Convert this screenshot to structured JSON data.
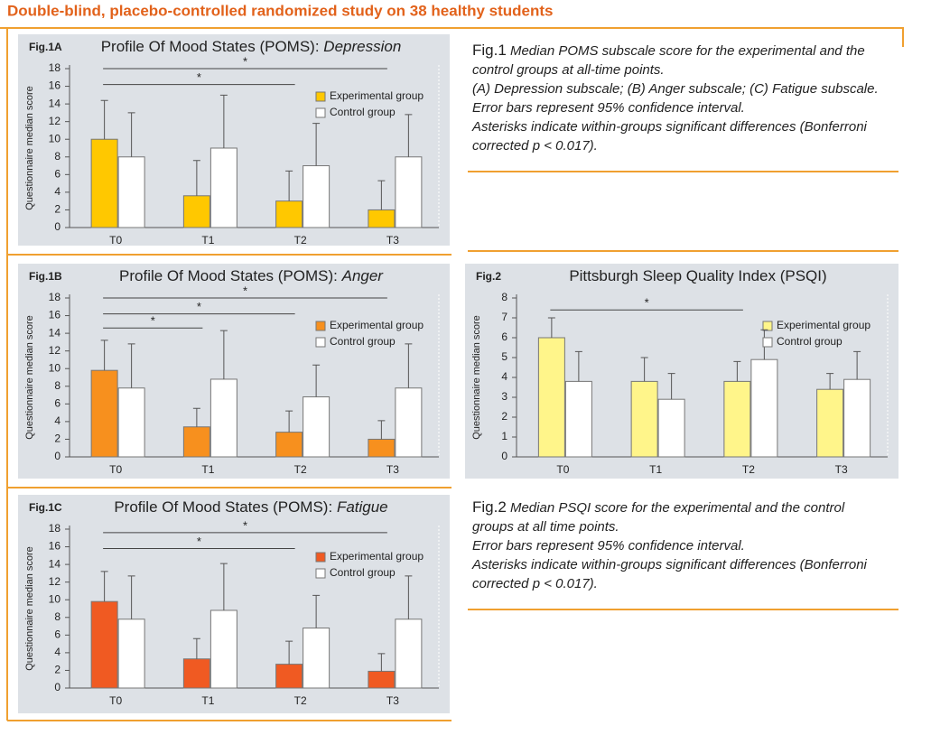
{
  "title": "Double-blind, placebo-controlled randomized study on 38 healthy students",
  "chart_data": [
    {
      "type": "bar",
      "label": "Fig.1A",
      "title": "Profile Of Mood States (POMS):",
      "title_emphasis": "Depression",
      "y_label": "Questionnaire median score",
      "categories": [
        "T0",
        "T1",
        "T2",
        "T3"
      ],
      "series": [
        {
          "name": "Experimental group",
          "color": "#ffc800",
          "values": [
            10,
            3.6,
            3,
            2
          ],
          "errors": [
            4.4,
            4,
            3.4,
            3.3
          ]
        },
        {
          "name": "Control group",
          "color": "#ffffff",
          "values": [
            8,
            9,
            7,
            8
          ],
          "errors": [
            5,
            6,
            4.8,
            4.8
          ]
        }
      ],
      "ylim": [
        0,
        18
      ],
      "yticks": [
        0,
        2,
        4,
        6,
        8,
        10,
        12,
        14,
        16,
        18
      ],
      "significance": [
        {
          "label": "*",
          "start": "T0",
          "end": "T3",
          "y": 18
        },
        {
          "label": "*",
          "start": "T0",
          "end": "T2",
          "y": 16.2
        }
      ]
    },
    {
      "type": "bar",
      "label": "Fig.1B",
      "title": "Profile Of Mood States (POMS):",
      "title_emphasis": "Anger",
      "y_label": "Questionnaire median score",
      "categories": [
        "T0",
        "T1",
        "T2",
        "T3"
      ],
      "series": [
        {
          "name": "Experimental group",
          "color": "#f7901e",
          "values": [
            9.8,
            3.4,
            2.8,
            2
          ],
          "errors": [
            3.4,
            2.1,
            2.4,
            2.1
          ]
        },
        {
          "name": "Control group",
          "color": "#ffffff",
          "values": [
            7.8,
            8.8,
            6.8,
            7.8
          ],
          "errors": [
            5,
            5.5,
            3.6,
            5
          ]
        }
      ],
      "ylim": [
        0,
        18
      ],
      "yticks": [
        0,
        2,
        4,
        6,
        8,
        10,
        12,
        14,
        16,
        18
      ],
      "significance": [
        {
          "label": "*",
          "start": "T0",
          "end": "T3",
          "y": 18
        },
        {
          "label": "*",
          "start": "T0",
          "end": "T2",
          "y": 16.2
        },
        {
          "label": "*",
          "start": "T0",
          "end": "T1",
          "y": 14.6
        }
      ]
    },
    {
      "type": "bar",
      "label": "Fig.1C",
      "title": "Profile Of Mood States (POMS):",
      "title_emphasis": "Fatigue",
      "y_label": "Questionnaire median score",
      "categories": [
        "T0",
        "T1",
        "T2",
        "T3"
      ],
      "series": [
        {
          "name": "Experimental group",
          "color": "#f05a22",
          "values": [
            9.8,
            3.3,
            2.7,
            1.9
          ],
          "errors": [
            3.4,
            2.3,
            2.6,
            2
          ]
        },
        {
          "name": "Control group",
          "color": "#ffffff",
          "values": [
            7.8,
            8.8,
            6.8,
            7.8
          ],
          "errors": [
            4.9,
            5.3,
            3.7,
            4.9
          ]
        }
      ],
      "ylim": [
        0,
        18
      ],
      "yticks": [
        0,
        2,
        4,
        6,
        8,
        10,
        12,
        14,
        16,
        18
      ],
      "significance": [
        {
          "label": "*",
          "start": "T0",
          "end": "T3",
          "y": 17.6
        },
        {
          "label": "*",
          "start": "T0",
          "end": "T2",
          "y": 15.8
        }
      ]
    },
    {
      "type": "bar",
      "label": "Fig.2",
      "title": "Pittsburgh Sleep Quality Index (PSQI)",
      "y_label": "Questionnaire median score",
      "categories": [
        "T0",
        "T1",
        "T2",
        "T3"
      ],
      "series": [
        {
          "name": "Experimental group",
          "color": "#fff58a",
          "values": [
            6,
            3.8,
            3.8,
            3.4
          ],
          "errors": [
            1,
            1.2,
            1,
            0.8
          ]
        },
        {
          "name": "Control group",
          "color": "#ffffff",
          "values": [
            3.8,
            2.9,
            4.9,
            3.9
          ],
          "errors": [
            1.5,
            1.3,
            1.5,
            1.4
          ]
        }
      ],
      "ylim": [
        0,
        8
      ],
      "yticks": [
        0,
        1,
        2,
        3,
        4,
        5,
        6,
        7,
        8
      ],
      "significance": [
        {
          "label": "*",
          "start": "T0",
          "end": "T2",
          "y": 7.4
        }
      ]
    }
  ],
  "captions": [
    {
      "label": "Fig.1",
      "lines": [
        "Median POMS subscale score for the experimental and the",
        "control groups at all-time points.",
        "(A) Depression subscale; (B) Anger subscale; (C) Fatigue subscale.",
        "Error bars represent 95% confidence interval.",
        "Asterisks indicate within-groups significant differences (Bonferroni",
        "corrected p < 0.017)."
      ]
    },
    {
      "label": "Fig.2",
      "lines": [
        "Median PSQI score for the experimental and the control",
        "groups at all time points.",
        "Error bars represent 95% confidence interval.",
        "Asterisks indicate within-groups significant differences (Bonferroni",
        "corrected p < 0.017)."
      ]
    }
  ]
}
